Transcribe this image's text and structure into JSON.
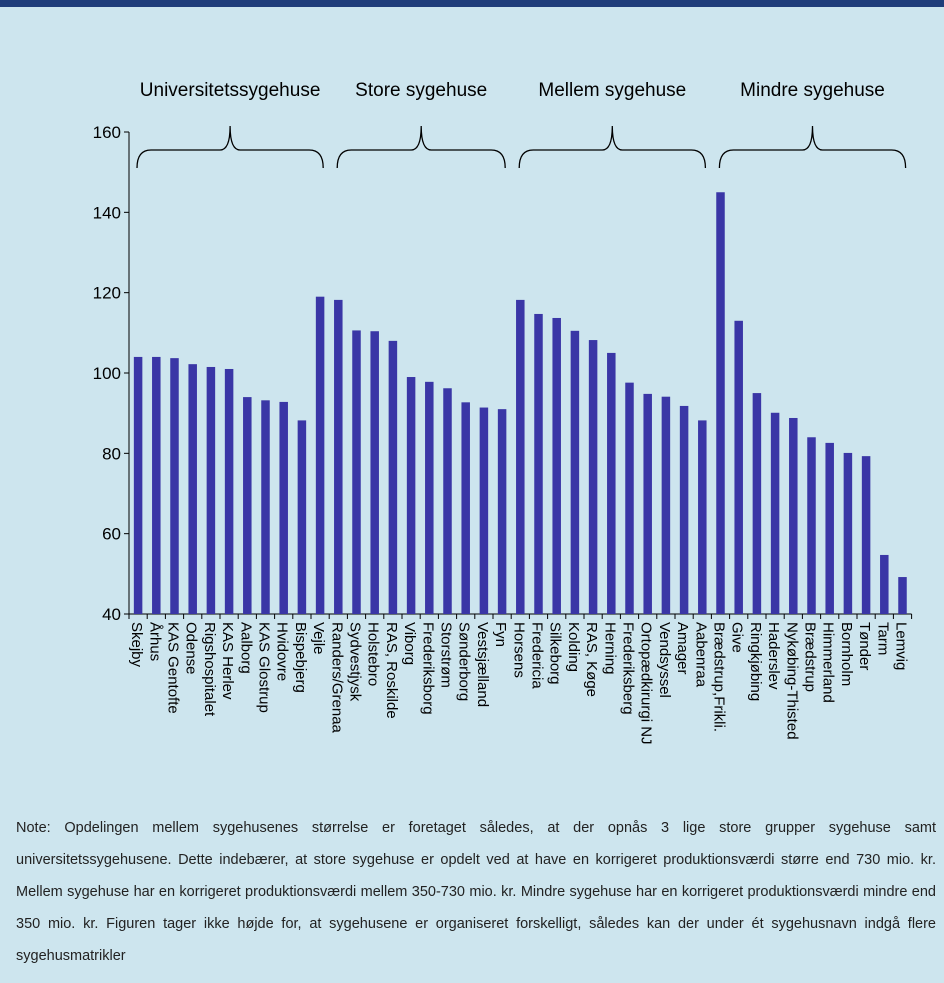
{
  "chart_data": {
    "type": "bar",
    "title": "",
    "xlabel": "",
    "ylabel": "",
    "ylim": [
      40,
      160
    ],
    "yticks": [
      40,
      60,
      80,
      100,
      120,
      140,
      160
    ],
    "grid": false,
    "bar_color": "#3a36a6",
    "groups": [
      {
        "label": "Universitetssygehuse",
        "start": 0,
        "end": 10
      },
      {
        "label": "Store sygehuse",
        "start": 11,
        "end": 20
      },
      {
        "label": "Mellem sygehuse",
        "start": 21,
        "end": 31
      },
      {
        "label": "Mindre sygehuse",
        "start": 32,
        "end": 42
      }
    ],
    "categories": [
      "Skejby",
      "Århus",
      "KAS Gentofte",
      "Odense",
      "Rigshospitalet",
      "KAS Herlev",
      "Aalborg",
      "KAS Glostrup",
      "Hvidovre",
      "Bispebjerg",
      "Vejle",
      "Randers/Grenaa",
      "Sydvestjysk",
      "Holstebro",
      "RAS, Roskilde",
      "Viborg",
      "Frederiksborg",
      "Storstrøm",
      "Sønderborg",
      "Vestsjælland",
      "Fyn",
      "Horsens",
      "Fredericia",
      "Silkeborg",
      "Kolding",
      "RAS, Køge",
      "Herning",
      "Frederiksberg",
      "Ortopædkirurgi NJ",
      "Vendsyssel",
      "Amager",
      "Aabenraa",
      "Brædstrup,Frikli.",
      "Give",
      "Ringkjøbing",
      "Haderslev",
      "Nykøbing-Thisted",
      "Brædstrup",
      "Himmerland",
      "Bornholm",
      "Tønder",
      "Tarm",
      "Lemvig"
    ],
    "values": [
      104,
      104,
      103.7,
      102.2,
      101.5,
      101,
      94,
      93.2,
      92.8,
      88.2,
      119,
      118.2,
      110.6,
      110.4,
      108,
      99,
      97.8,
      96.2,
      92.7,
      91.4,
      91,
      118.2,
      114.7,
      113.7,
      110.5,
      108.2,
      105,
      97.6,
      94.8,
      94.1,
      91.8,
      88.2,
      145,
      113,
      95,
      90.1,
      88.8,
      84,
      82.6,
      80.1,
      79.3,
      54.7,
      49.2
    ]
  },
  "note": "Note: Opdelingen mellem sygehusenes størrelse er foretaget således, at der opnås 3 lige store grupper sygehuse samt universitetssygehusene. Dette indebærer, at store sygehuse er opdelt ved at have en korrigeret produktionsværdi større end 730 mio. kr. Mellem sygehuse har en korrigeret produktionsværdi mellem 350-730 mio. kr. Mindre sygehuse har en korrigeret produktionsværdi mindre end 350 mio. kr. Figuren tager ikke højde for, at sygehusene er organiseret forskelligt, således kan der under ét sygehusnavn indgå flere sygehusmatrikler"
}
